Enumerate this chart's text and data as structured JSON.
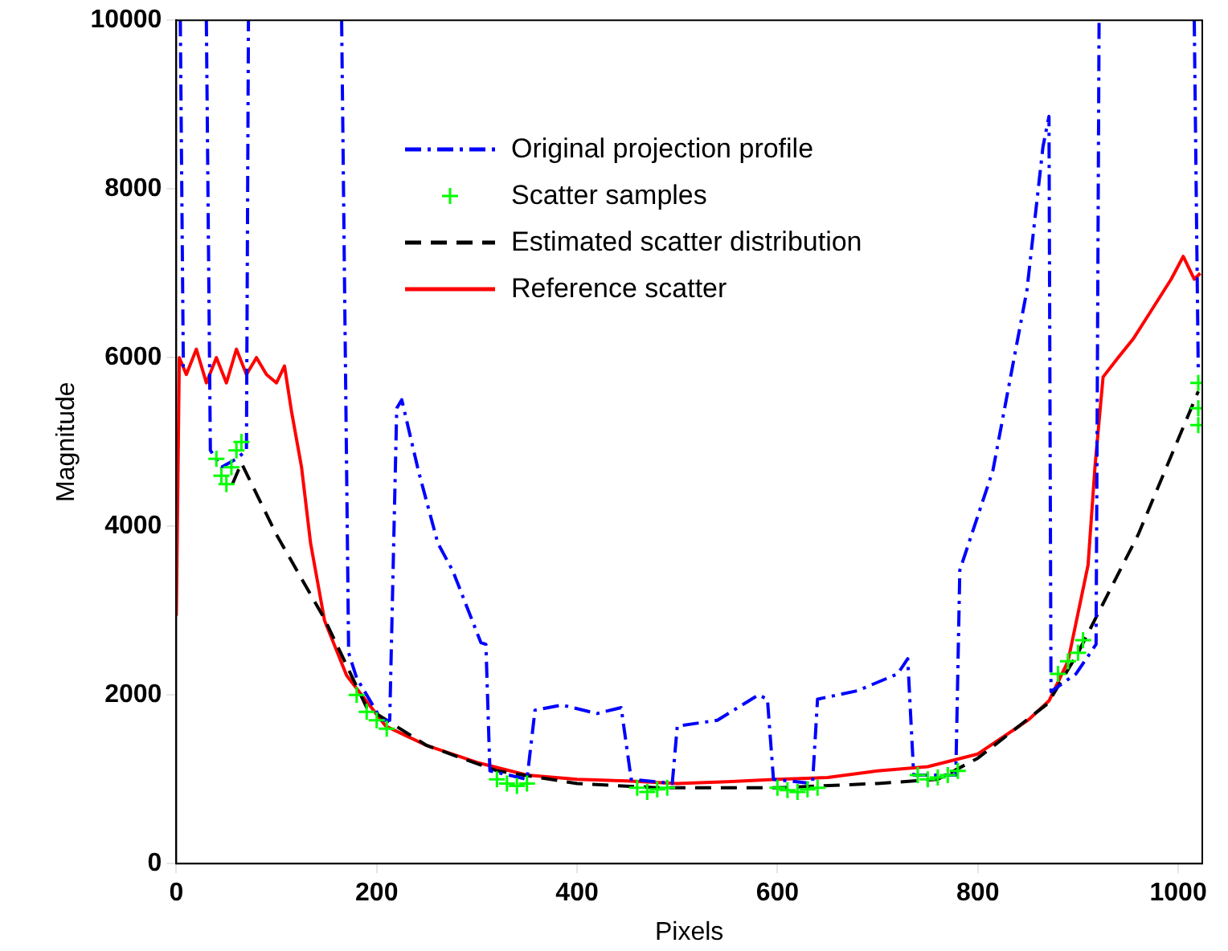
{
  "chart_data": {
    "type": "line",
    "xlabel": "Pixels",
    "ylabel": "Magnitude",
    "xlim": [
      0,
      1024
    ],
    "xticks": [
      0,
      200,
      400,
      600,
      800,
      1000
    ],
    "ylim": [
      0,
      10000
    ],
    "yticks": [
      0,
      2000,
      4000,
      6000,
      8000,
      10000
    ],
    "grid": false,
    "legend": "top",
    "series": [
      {
        "name": "Original projection profile",
        "color": "#0000ff",
        "line_style": "dashdot",
        "marker": "none",
        "x": [
          4,
          7,
          12,
          20,
          30,
          34,
          45,
          60,
          70,
          72,
          120,
          165,
          172,
          180,
          205,
          213,
          220,
          225,
          242,
          261,
          276,
          304,
          309,
          313,
          350,
          358,
          385,
          420,
          444,
          454,
          495,
          500,
          540,
          581,
          590,
          596,
          635,
          640,
          680,
          720,
          730,
          736,
          778,
          782,
          815,
          849,
          865,
          871,
          873,
          898,
          918,
          921,
          970,
          1016,
          1020
        ],
        "values": [
          10000,
          5900,
          5900,
          null,
          10000,
          4900,
          4700,
          4800,
          4900,
          10000,
          null,
          10000,
          2500,
          2200,
          1700,
          1700,
          5400,
          5500,
          4640,
          3800,
          3470,
          2620,
          2600,
          1100,
          1000,
          1820,
          1880,
          1780,
          1850,
          1000,
          950,
          1630,
          1700,
          2000,
          1950,
          1000,
          950,
          1950,
          2050,
          2250,
          2430,
          1050,
          1050,
          3480,
          4660,
          6800,
          8500,
          8860,
          2040,
          2250,
          2600,
          10000,
          null,
          10000,
          5830
        ]
      },
      {
        "name": "Scatter samples",
        "type": "scatter",
        "color": "#00ff00",
        "marker": "cross",
        "x": [
          40,
          45,
          50,
          55,
          60,
          65,
          180,
          190,
          200,
          210,
          320,
          330,
          340,
          350,
          460,
          470,
          480,
          490,
          600,
          610,
          620,
          630,
          640,
          740,
          750,
          760,
          770,
          780,
          880,
          890,
          900,
          905,
          1020,
          1020,
          1020
        ],
        "values": [
          4800,
          4600,
          4500,
          4700,
          4900,
          5000,
          2000,
          1800,
          1700,
          1600,
          1000,
          950,
          920,
          950,
          900,
          850,
          880,
          900,
          900,
          870,
          850,
          880,
          900,
          1050,
          1000,
          1020,
          1050,
          1100,
          2250,
          2400,
          2500,
          2650,
          5200,
          5400,
          5700
        ]
      },
      {
        "name": "Estimated scatter distribution",
        "color": "#000000",
        "line_style": "dashed",
        "marker": "none",
        "x": [
          56,
          65,
          100,
          148,
          190,
          250,
          320,
          400,
          480,
          600,
          700,
          760,
          800,
          870,
          900,
          960,
          1020
        ],
        "values": [
          4500,
          4750,
          3900,
          2900,
          1850,
          1400,
          1100,
          950,
          900,
          900,
          950,
          1000,
          1250,
          1900,
          2500,
          3900,
          5600
        ]
      },
      {
        "name": "Reference scatter",
        "color": "#ff0000",
        "line_style": "solid",
        "marker": "none",
        "x": [
          0,
          3,
          10,
          20,
          30,
          40,
          50,
          60,
          70,
          80,
          90,
          100,
          108,
          115,
          125,
          134,
          148,
          170,
          209,
          250,
          300,
          350,
          400,
          450,
          500,
          550,
          600,
          650,
          700,
          750,
          800,
          850,
          871,
          890,
          910,
          917,
          925,
          940,
          955,
          970,
          993,
          1005,
          1016,
          1022
        ],
        "values": [
          2940,
          6000,
          5800,
          6100,
          5700,
          6000,
          5700,
          6100,
          5800,
          6000,
          5800,
          5700,
          5900,
          5360,
          4700,
          3800,
          2880,
          2230,
          1630,
          1400,
          1200,
          1050,
          1000,
          980,
          950,
          970,
          1000,
          1020,
          1100,
          1150,
          1300,
          1700,
          1930,
          2400,
          3540,
          4720,
          5770,
          6000,
          6220,
          6500,
          6930,
          7200,
          6930,
          7000
        ]
      }
    ]
  }
}
